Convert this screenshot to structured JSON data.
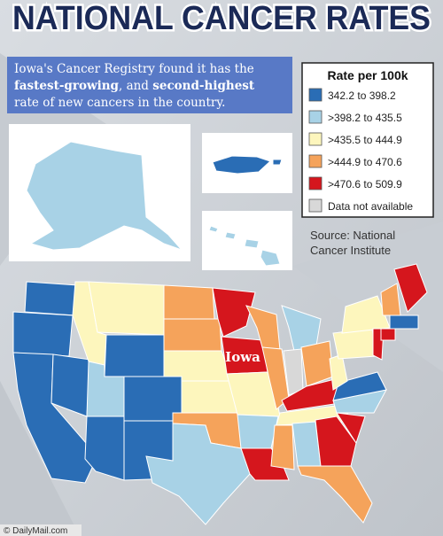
{
  "header": {
    "title": "NATIONAL CANCER RATES"
  },
  "intro": {
    "lines": [
      [
        "Iowa's Cancer Registry found it has the"
      ],
      [
        "fastest-growing",
        ", and ",
        "second-highest"
      ],
      [
        "rate of new cancers in the country."
      ]
    ]
  },
  "legend": {
    "title": "Rate per 100k",
    "items": [
      {
        "label": "342.2 to 398.2",
        "color": "#2a6db5"
      },
      {
        "label": ">398.2 to 435.5",
        "color": "#a8d2e6"
      },
      {
        "label": ">435.5 to 444.9",
        "color": "#fdf6bd"
      },
      {
        "label": ">444.9 to 470.6",
        "color": "#f5a35b"
      },
      {
        "label": ">470.6 to 509.9",
        "color": "#d5161d"
      },
      {
        "label": "Data not available",
        "color": "#d8d8d8"
      }
    ]
  },
  "source": {
    "lines": [
      "Source: National",
      "Cancer Institute"
    ]
  },
  "map": {
    "highlight_label": "Iowa"
  },
  "footer": {
    "credit": "© DailyMail.com"
  }
}
